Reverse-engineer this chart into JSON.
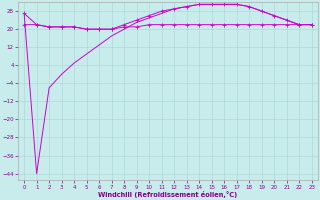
{
  "bg_color": "#c8ecec",
  "grid_color": "#b0d8d8",
  "line_color": "#cc00cc",
  "x_values": [
    0,
    1,
    2,
    3,
    4,
    5,
    6,
    7,
    8,
    9,
    10,
    11,
    12,
    13,
    14,
    15,
    16,
    17,
    18,
    19,
    20,
    21,
    22,
    23
  ],
  "series_flat": [
    22,
    22,
    21,
    21,
    21,
    20,
    20,
    20,
    21,
    21,
    22,
    22,
    22,
    22,
    22,
    22,
    22,
    22,
    22,
    22,
    22,
    22,
    22,
    22
  ],
  "series_peak": [
    27,
    22,
    21,
    21,
    21,
    20,
    20,
    20,
    22,
    24,
    26,
    28,
    29,
    30,
    31,
    31,
    31,
    31,
    30,
    28,
    26,
    24,
    22,
    22
  ],
  "series_dip": [
    27,
    -44,
    -6,
    0,
    5,
    9,
    13,
    17,
    20,
    23,
    25,
    27,
    29,
    30,
    31,
    31,
    31,
    31,
    30,
    28,
    26,
    24,
    22,
    22
  ],
  "yticks": [
    -44,
    -36,
    -28,
    -20,
    -12,
    -4,
    4,
    12,
    20,
    28
  ],
  "xticks": [
    0,
    1,
    2,
    3,
    4,
    5,
    6,
    7,
    8,
    9,
    10,
    11,
    12,
    13,
    14,
    15,
    16,
    17,
    18,
    19,
    20,
    21,
    22,
    23
  ],
  "xlim": [
    -0.5,
    23.5
  ],
  "ylim": [
    -47,
    32
  ],
  "xlabel": "Windchill (Refroidissement éolien,°C)"
}
